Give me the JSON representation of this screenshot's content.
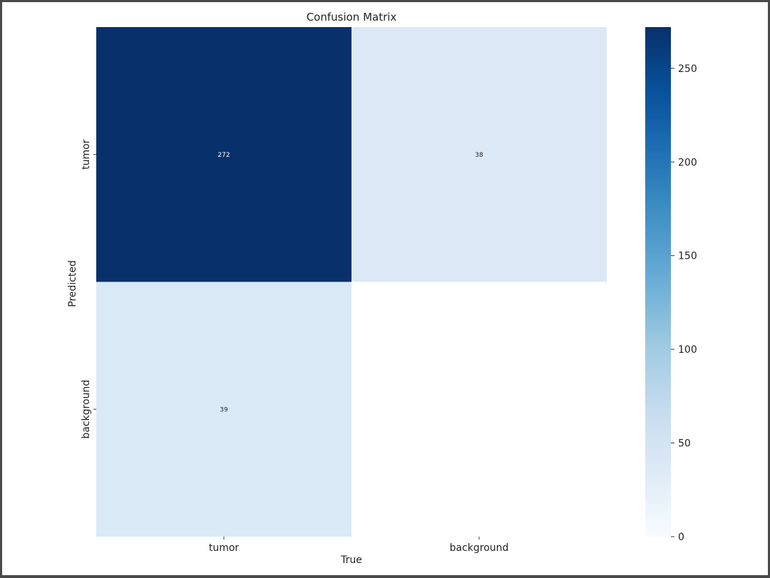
{
  "chart_data": {
    "type": "heatmap",
    "title": "Confusion Matrix",
    "xlabel": "True",
    "ylabel": "Predicted",
    "x_categories": [
      "tumor",
      "background"
    ],
    "y_categories": [
      "tumor",
      "background"
    ],
    "values": [
      [
        272,
        38
      ],
      [
        39,
        null
      ]
    ],
    "colormap": "Blues",
    "colorbar": {
      "min": 0,
      "max": 272,
      "ticks": [
        0,
        50,
        100,
        150,
        200,
        250
      ]
    }
  }
}
